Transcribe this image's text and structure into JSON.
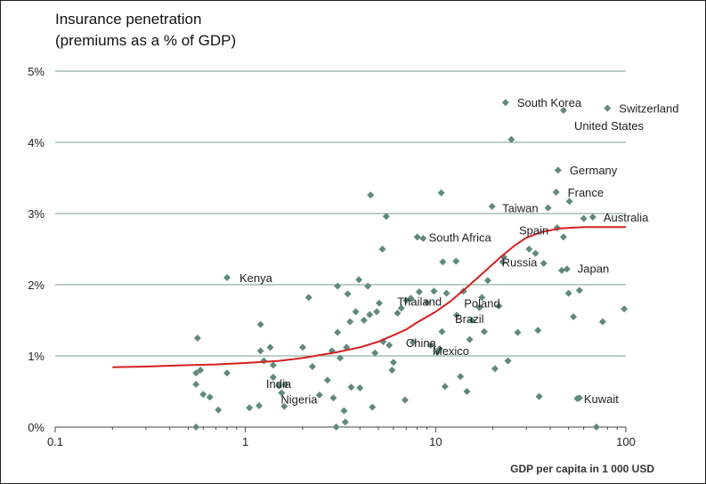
{
  "chart_data": {
    "type": "scatter",
    "title": "Insurance penetration",
    "subtitle": "(premiums as a % of GDP)",
    "xlabel": "GDP per capita in 1 000 USD",
    "ylabel": "",
    "x_scale": "log",
    "xlim": [
      0.1,
      100
    ],
    "ylim": [
      0,
      5
    ],
    "x_ticks": [
      {
        "value": 0.1,
        "label": "0.1"
      },
      {
        "value": 1,
        "label": "1"
      },
      {
        "value": 10,
        "label": "10"
      },
      {
        "value": 100,
        "label": "100"
      }
    ],
    "y_ticks": [
      {
        "value": 0,
        "label": "0%"
      },
      {
        "value": 1,
        "label": "1%"
      },
      {
        "value": 2,
        "label": "2%"
      },
      {
        "value": 3,
        "label": "3%"
      },
      {
        "value": 4,
        "label": "4%"
      },
      {
        "value": 5,
        "label": "5%"
      }
    ],
    "grid": true,
    "colors": {
      "points": "#5f8a7a",
      "curve": "#d42020",
      "grid": "#7a9a8c",
      "axis": "#444444"
    },
    "labeled_points": [
      {
        "label": "South Korea",
        "x": 23.3,
        "y": 4.56
      },
      {
        "label": "Switzerland",
        "x": 80.0,
        "y": 4.48
      },
      {
        "label": "United States",
        "x": 47.0,
        "y": 4.45
      },
      {
        "label": "Germany",
        "x": 44.0,
        "y": 3.61
      },
      {
        "label": "France",
        "x": 43.0,
        "y": 3.3
      },
      {
        "label": "Taiwan",
        "x": 39.0,
        "y": 3.08
      },
      {
        "label": "Australia",
        "x": 67.0,
        "y": 2.95
      },
      {
        "label": "Spain",
        "x": 47.0,
        "y": 2.67
      },
      {
        "label": "South Africa",
        "x": 8.0,
        "y": 2.67
      },
      {
        "label": "Russia",
        "x": 22.5,
        "y": 2.32
      },
      {
        "label": "Japan",
        "x": 49.0,
        "y": 2.22
      },
      {
        "label": "Kenya",
        "x": 0.8,
        "y": 2.1
      },
      {
        "label": "Poland",
        "x": 17.5,
        "y": 1.82
      },
      {
        "label": "Thailand",
        "x": 7.0,
        "y": 1.78
      },
      {
        "label": "Brazil",
        "x": 15.5,
        "y": 1.5
      },
      {
        "label": "China",
        "x": 7.6,
        "y": 1.19
      },
      {
        "label": "Mexico",
        "x": 10.5,
        "y": 1.1
      },
      {
        "label": "India",
        "x": 1.4,
        "y": 0.7
      },
      {
        "label": "Nigeria",
        "x": 1.55,
        "y": 0.48
      },
      {
        "label": "Kuwait",
        "x": 57.0,
        "y": 0.41
      }
    ],
    "unlabeled_points": [
      {
        "x": 0.55,
        "y": 0.76
      },
      {
        "x": 0.56,
        "y": 1.25
      },
      {
        "x": 0.55,
        "y": 0.6
      },
      {
        "x": 0.58,
        "y": 0.8
      },
      {
        "x": 0.6,
        "y": 0.46
      },
      {
        "x": 0.65,
        "y": 0.42
      },
      {
        "x": 0.72,
        "y": 0.24
      },
      {
        "x": 0.55,
        "y": 0.0
      },
      {
        "x": 0.8,
        "y": 0.76
      },
      {
        "x": 1.05,
        "y": 0.27
      },
      {
        "x": 1.18,
        "y": 0.3
      },
      {
        "x": 1.2,
        "y": 1.44
      },
      {
        "x": 1.2,
        "y": 1.07
      },
      {
        "x": 1.25,
        "y": 0.93
      },
      {
        "x": 1.35,
        "y": 1.12
      },
      {
        "x": 1.4,
        "y": 0.87
      },
      {
        "x": 1.5,
        "y": 0.58
      },
      {
        "x": 1.62,
        "y": 0.6
      },
      {
        "x": 1.6,
        "y": 0.29
      },
      {
        "x": 2.0,
        "y": 1.12
      },
      {
        "x": 2.15,
        "y": 1.82
      },
      {
        "x": 2.25,
        "y": 0.85
      },
      {
        "x": 2.45,
        "y": 0.45
      },
      {
        "x": 2.7,
        "y": 0.66
      },
      {
        "x": 2.85,
        "y": 1.07
      },
      {
        "x": 2.9,
        "y": 0.41
      },
      {
        "x": 3.0,
        "y": 0.0
      },
      {
        "x": 3.05,
        "y": 1.33
      },
      {
        "x": 3.05,
        "y": 1.98
      },
      {
        "x": 3.15,
        "y": 0.97
      },
      {
        "x": 3.3,
        "y": 0.23
      },
      {
        "x": 3.35,
        "y": 0.07
      },
      {
        "x": 3.4,
        "y": 1.12
      },
      {
        "x": 3.45,
        "y": 1.87
      },
      {
        "x": 3.55,
        "y": 1.48
      },
      {
        "x": 3.6,
        "y": 0.56
      },
      {
        "x": 3.8,
        "y": 1.62
      },
      {
        "x": 3.95,
        "y": 2.07
      },
      {
        "x": 4.0,
        "y": 0.55
      },
      {
        "x": 4.2,
        "y": 1.5
      },
      {
        "x": 4.4,
        "y": 1.98
      },
      {
        "x": 4.5,
        "y": 1.58
      },
      {
        "x": 4.55,
        "y": 3.26
      },
      {
        "x": 4.65,
        "y": 0.28
      },
      {
        "x": 4.8,
        "y": 1.04
      },
      {
        "x": 4.9,
        "y": 1.62
      },
      {
        "x": 5.05,
        "y": 1.74
      },
      {
        "x": 5.25,
        "y": 2.5
      },
      {
        "x": 5.3,
        "y": 1.2
      },
      {
        "x": 5.5,
        "y": 2.96
      },
      {
        "x": 5.7,
        "y": 1.15
      },
      {
        "x": 5.9,
        "y": 0.8
      },
      {
        "x": 6.0,
        "y": 0.91
      },
      {
        "x": 6.3,
        "y": 1.6
      },
      {
        "x": 6.6,
        "y": 1.67
      },
      {
        "x": 6.9,
        "y": 0.38
      },
      {
        "x": 7.4,
        "y": 1.81
      },
      {
        "x": 8.2,
        "y": 1.9
      },
      {
        "x": 8.6,
        "y": 2.65
      },
      {
        "x": 9.0,
        "y": 1.75
      },
      {
        "x": 9.4,
        "y": 1.15
      },
      {
        "x": 9.8,
        "y": 1.91
      },
      {
        "x": 10.2,
        "y": 1.05
      },
      {
        "x": 10.8,
        "y": 1.34
      },
      {
        "x": 10.7,
        "y": 3.29
      },
      {
        "x": 10.9,
        "y": 2.32
      },
      {
        "x": 11.2,
        "y": 0.57
      },
      {
        "x": 11.4,
        "y": 1.88
      },
      {
        "x": 12.8,
        "y": 2.33
      },
      {
        "x": 12.9,
        "y": 1.57
      },
      {
        "x": 13.5,
        "y": 0.71
      },
      {
        "x": 14.0,
        "y": 1.91
      },
      {
        "x": 14.6,
        "y": 0.5
      },
      {
        "x": 15.1,
        "y": 1.23
      },
      {
        "x": 17.0,
        "y": 1.68
      },
      {
        "x": 18.0,
        "y": 1.34
      },
      {
        "x": 18.8,
        "y": 2.06
      },
      {
        "x": 19.8,
        "y": 3.1
      },
      {
        "x": 20.5,
        "y": 0.82
      },
      {
        "x": 21.5,
        "y": 1.7
      },
      {
        "x": 22.8,
        "y": 2.39
      },
      {
        "x": 24.0,
        "y": 0.93
      },
      {
        "x": 25.0,
        "y": 4.04
      },
      {
        "x": 27.0,
        "y": 1.33
      },
      {
        "x": 31.0,
        "y": 2.5
      },
      {
        "x": 33.5,
        "y": 2.44
      },
      {
        "x": 34.5,
        "y": 1.36
      },
      {
        "x": 35.0,
        "y": 0.43
      },
      {
        "x": 37.0,
        "y": 2.3
      },
      {
        "x": 43.5,
        "y": 2.8
      },
      {
        "x": 46.0,
        "y": 2.2
      },
      {
        "x": 50.0,
        "y": 1.88
      },
      {
        "x": 50.5,
        "y": 3.17
      },
      {
        "x": 53.0,
        "y": 1.55
      },
      {
        "x": 55.5,
        "y": 0.4
      },
      {
        "x": 57.0,
        "y": 1.92
      },
      {
        "x": 60.0,
        "y": 2.93
      },
      {
        "x": 70.0,
        "y": 0.0
      },
      {
        "x": 75.5,
        "y": 1.48
      },
      {
        "x": 98.0,
        "y": 1.66
      }
    ],
    "trend_curve": [
      {
        "x": 0.2,
        "y": 0.84
      },
      {
        "x": 0.3,
        "y": 0.85
      },
      {
        "x": 0.5,
        "y": 0.87
      },
      {
        "x": 0.7,
        "y": 0.88
      },
      {
        "x": 1.0,
        "y": 0.9
      },
      {
        "x": 1.5,
        "y": 0.93
      },
      {
        "x": 2.0,
        "y": 0.97
      },
      {
        "x": 3.0,
        "y": 1.05
      },
      {
        "x": 4.0,
        "y": 1.12
      },
      {
        "x": 5.0,
        "y": 1.2
      },
      {
        "x": 6.0,
        "y": 1.29
      },
      {
        "x": 7.0,
        "y": 1.37
      },
      {
        "x": 8.0,
        "y": 1.47
      },
      {
        "x": 10.0,
        "y": 1.62
      },
      {
        "x": 12.0,
        "y": 1.77
      },
      {
        "x": 15.0,
        "y": 1.99
      },
      {
        "x": 18.0,
        "y": 2.18
      },
      {
        "x": 22.0,
        "y": 2.39
      },
      {
        "x": 26.0,
        "y": 2.55
      },
      {
        "x": 30.0,
        "y": 2.66
      },
      {
        "x": 36.0,
        "y": 2.74
      },
      {
        "x": 45.0,
        "y": 2.79
      },
      {
        "x": 60.0,
        "y": 2.81
      },
      {
        "x": 100.0,
        "y": 2.81
      }
    ]
  }
}
